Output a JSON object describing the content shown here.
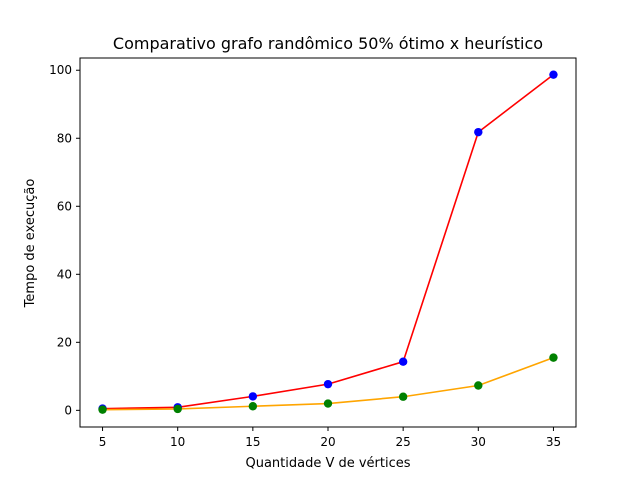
{
  "chart_data": {
    "type": "line",
    "title": "Comparativo grafo randômico 50% ótimo x heurístico",
    "xlabel": "Quantidade V de vértices",
    "ylabel": "Tempo de execução",
    "x": [
      5,
      10,
      15,
      20,
      25,
      30,
      35
    ],
    "xticks": [
      5,
      10,
      15,
      20,
      25,
      30,
      35
    ],
    "yticks": [
      0,
      20,
      40,
      60,
      80,
      100
    ],
    "xlim": [
      3.5,
      36.5
    ],
    "ylim": [
      -4.9,
      103.6
    ],
    "grid": false,
    "series": [
      {
        "values": [
          0.5,
          0.9,
          4.1,
          7.7,
          14.3,
          81.8,
          98.7
        ],
        "line_color": "#ff0000",
        "marker_color": "#0000ff"
      },
      {
        "values": [
          0.2,
          0.4,
          1.2,
          2.0,
          4.0,
          7.3,
          15.5
        ],
        "line_color": "#ffa500",
        "marker_color": "#008000"
      }
    ]
  }
}
